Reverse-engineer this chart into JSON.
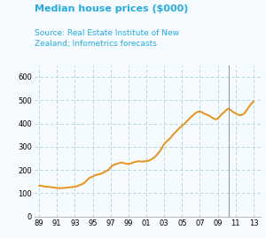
{
  "title": "Median house prices ($000)",
  "source": "Source: Real Estate Institute of New\nZealand; Infometrics forecasts",
  "title_color": "#29abe2",
  "source_color": "#29abe2",
  "line_color": "#e8921a",
  "line_width": 1.4,
  "grid_color": "#a8cfe0",
  "background_color": "#f5fbff",
  "vline_x": 2010.25,
  "vline_color": "#999999",
  "ylim": [
    0,
    650
  ],
  "yticks": [
    0,
    100,
    200,
    300,
    400,
    500,
    600
  ],
  "xtick_labels": [
    "89",
    "91",
    "93",
    "95",
    "97",
    "99",
    "01",
    "03",
    "05",
    "07",
    "09",
    "11",
    "13"
  ],
  "xtick_positions": [
    1989,
    1991,
    1993,
    1995,
    1997,
    1999,
    2001,
    2003,
    2005,
    2007,
    2009,
    2011,
    2013
  ],
  "xlim": [
    1988.5,
    2013.8
  ],
  "data": [
    [
      1989.0,
      132
    ],
    [
      1989.25,
      133
    ],
    [
      1989.5,
      130
    ],
    [
      1989.75,
      128
    ],
    [
      1990.0,
      128
    ],
    [
      1990.25,
      127
    ],
    [
      1990.5,
      126
    ],
    [
      1990.75,
      124
    ],
    [
      1991.0,
      123
    ],
    [
      1991.25,
      122
    ],
    [
      1991.5,
      122
    ],
    [
      1991.75,
      123
    ],
    [
      1992.0,
      124
    ],
    [
      1992.25,
      125
    ],
    [
      1992.5,
      126
    ],
    [
      1992.75,
      127
    ],
    [
      1993.0,
      128
    ],
    [
      1993.25,
      130
    ],
    [
      1993.5,
      135
    ],
    [
      1993.75,
      138
    ],
    [
      1994.0,
      143
    ],
    [
      1994.25,
      152
    ],
    [
      1994.5,
      162
    ],
    [
      1994.75,
      168
    ],
    [
      1995.0,
      172
    ],
    [
      1995.25,
      177
    ],
    [
      1995.5,
      180
    ],
    [
      1995.75,
      182
    ],
    [
      1996.0,
      185
    ],
    [
      1996.25,
      190
    ],
    [
      1996.5,
      195
    ],
    [
      1996.75,
      200
    ],
    [
      1997.0,
      212
    ],
    [
      1997.25,
      220
    ],
    [
      1997.5,
      224
    ],
    [
      1997.75,
      227
    ],
    [
      1998.0,
      230
    ],
    [
      1998.25,
      232
    ],
    [
      1998.5,
      230
    ],
    [
      1998.75,
      227
    ],
    [
      1999.0,
      226
    ],
    [
      1999.25,
      228
    ],
    [
      1999.5,
      232
    ],
    [
      1999.75,
      235
    ],
    [
      2000.0,
      237
    ],
    [
      2000.25,
      238
    ],
    [
      2000.5,
      236
    ],
    [
      2000.75,
      237
    ],
    [
      2001.0,
      238
    ],
    [
      2001.25,
      240
    ],
    [
      2001.5,
      244
    ],
    [
      2001.75,
      250
    ],
    [
      2002.0,
      258
    ],
    [
      2002.25,
      268
    ],
    [
      2002.5,
      280
    ],
    [
      2002.75,
      295
    ],
    [
      2003.0,
      312
    ],
    [
      2003.25,
      322
    ],
    [
      2003.5,
      330
    ],
    [
      2003.75,
      340
    ],
    [
      2004.0,
      352
    ],
    [
      2004.25,
      362
    ],
    [
      2004.5,
      372
    ],
    [
      2004.75,
      382
    ],
    [
      2005.0,
      390
    ],
    [
      2005.25,
      398
    ],
    [
      2005.5,
      408
    ],
    [
      2005.75,
      418
    ],
    [
      2006.0,
      428
    ],
    [
      2006.25,
      436
    ],
    [
      2006.5,
      444
    ],
    [
      2006.75,
      450
    ],
    [
      2007.0,
      452
    ],
    [
      2007.25,
      448
    ],
    [
      2007.5,
      442
    ],
    [
      2007.75,
      438
    ],
    [
      2008.0,
      435
    ],
    [
      2008.25,
      428
    ],
    [
      2008.5,
      422
    ],
    [
      2008.75,
      418
    ],
    [
      2009.0,
      420
    ],
    [
      2009.25,
      432
    ],
    [
      2009.5,
      442
    ],
    [
      2009.75,
      450
    ],
    [
      2010.0,
      460
    ],
    [
      2010.25,
      464
    ],
    [
      2010.5,
      456
    ],
    [
      2010.75,
      448
    ],
    [
      2011.0,
      443
    ],
    [
      2011.25,
      438
    ],
    [
      2011.5,
      435
    ],
    [
      2011.75,
      438
    ],
    [
      2012.0,
      445
    ],
    [
      2012.25,
      458
    ],
    [
      2012.5,
      472
    ],
    [
      2012.75,
      485
    ],
    [
      2013.0,
      495
    ]
  ]
}
